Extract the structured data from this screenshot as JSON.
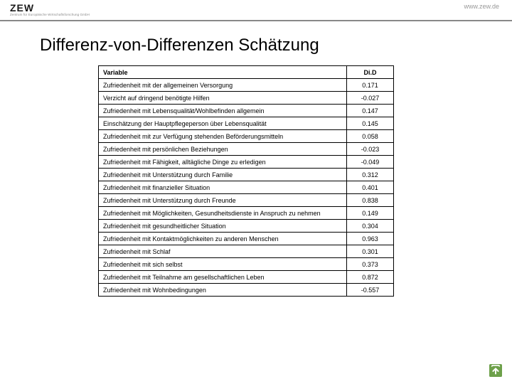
{
  "header": {
    "logo_main": "ZEW",
    "logo_sub": "Zentrum für Europäische Wirtschaftsforschung GmbH",
    "url": "www.zew.de"
  },
  "title": "Differenz-von-Differenzen Schätzung",
  "table": {
    "columns": [
      "Variable",
      "Di.D"
    ],
    "rows": [
      {
        "variable": "Zufriedenheit mit der allgemeinen Versorgung",
        "did": "0.171"
      },
      {
        "variable": "Verzicht auf dringend benötigte Hilfen",
        "did": "-0.027"
      },
      {
        "variable": "Zufriedenheit mit Lebensqualität/Wohlbefinden allgemein",
        "did": "0.147"
      },
      {
        "variable": "Einschätzung der Hauptpflegeperson über Lebensqualität",
        "did": "0.145"
      },
      {
        "variable": "Zufriedenheit mit zur Verfügung stehenden Beförderungsmitteln",
        "did": "0.058"
      },
      {
        "variable": "Zufriedenheit mit persönlichen Beziehungen",
        "did": "-0.023"
      },
      {
        "variable": "Zufriedenheit mit Fähigkeit, alltägliche Dinge zu erledigen",
        "did": "-0.049"
      },
      {
        "variable": "Zufriedenheit mit Unterstützung durch Familie",
        "did": "0.312"
      },
      {
        "variable": "Zufriedenheit mit finanzieller Situation",
        "did": "0.401"
      },
      {
        "variable": "Zufriedenheit mit Unterstützung durch Freunde",
        "did": "0.838"
      },
      {
        "variable": "Zufriedenheit mit Möglichkeiten, Gesundheitsdienste in Anspruch zu nehmen",
        "did": "0.149"
      },
      {
        "variable": "Zufriedenheit mit gesundheitlicher Situation",
        "did": "0.304"
      },
      {
        "variable": "Zufriedenheit mit Kontaktmöglichkeiten zu anderen Menschen",
        "did": "0.963"
      },
      {
        "variable": "Zufriedenheit mit Schlaf",
        "did": "0.301"
      },
      {
        "variable": "Zufriedenheit mit sich selbst",
        "did": "0.373"
      },
      {
        "variable": "Zufriedenheit mit Teilnahme am gesellschaftlichen Leben",
        "did": "0.872"
      },
      {
        "variable": "Zufriedenheit mit Wohnbedingungen",
        "did": "-0.557"
      }
    ]
  },
  "style": {
    "title_fontsize": 24,
    "table_fontsize": 9,
    "border_color": "#000000",
    "background_color": "#ffffff",
    "separator_color": "#888888",
    "corner_icon_bg": "#6da04a",
    "corner_icon_arrow": "#ffffff"
  }
}
